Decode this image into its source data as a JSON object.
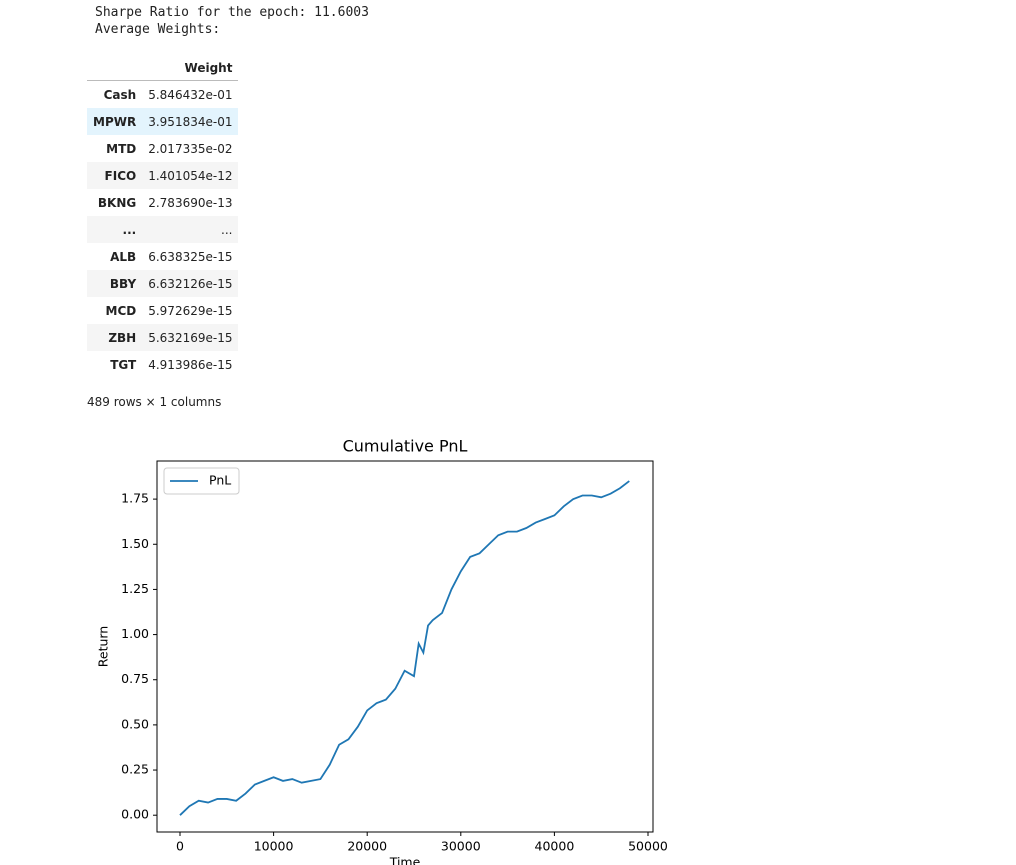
{
  "output_lines": [
    "Sharpe Ratio for the epoch: 11.6003",
    "Average Weights:"
  ],
  "table": {
    "columns": [
      "Weight"
    ],
    "rows": [
      [
        "Cash",
        "5.846432e-01"
      ],
      [
        "MPWR",
        "3.951834e-01"
      ],
      [
        "MTD",
        "2.017335e-02"
      ],
      [
        "FICO",
        "1.401054e-12"
      ],
      [
        "BKNG",
        "2.783690e-13"
      ],
      [
        "...",
        "..."
      ],
      [
        "ALB",
        "6.638325e-15"
      ],
      [
        "BBY",
        "6.632126e-15"
      ],
      [
        "MCD",
        "5.972629e-15"
      ],
      [
        "ZBH",
        "5.632169e-15"
      ],
      [
        "TGT",
        "4.913986e-15"
      ]
    ],
    "footer": "489 rows × 1 columns"
  },
  "chart_data": {
    "type": "line",
    "title": "Cumulative PnL",
    "x_label": "Time",
    "y_label": "Return",
    "legend": "upper left",
    "xlim": [
      -2457,
      50534
    ],
    "ylim": [
      -0.093,
      1.961
    ],
    "xticks": [
      0,
      10000,
      20000,
      30000,
      40000,
      50000
    ],
    "yticks": [
      {
        "value": 0,
        "label": "0.00"
      },
      {
        "value": 0.25,
        "label": "0.25"
      },
      {
        "value": 0.5,
        "label": "0.50"
      },
      {
        "value": 0.75,
        "label": "0.75"
      },
      {
        "value": 1,
        "label": "1.00"
      },
      {
        "value": 1.25,
        "label": "1.25"
      },
      {
        "value": 1.5,
        "label": "1.50"
      },
      {
        "value": 1.75,
        "label": "1.75"
      }
    ],
    "series": [
      {
        "name": "PnL",
        "color": "#1f77b4",
        "x": [
          0,
          1000,
          2000,
          3000,
          4000,
          5000,
          6000,
          7000,
          8000,
          9000,
          10000,
          11000,
          12000,
          13000,
          14000,
          15000,
          16000,
          17000,
          18000,
          19000,
          20000,
          21000,
          22000,
          23000,
          24000,
          25000,
          25500,
          26000,
          26500,
          27000,
          28000,
          29000,
          30000,
          31000,
          32000,
          33000,
          34000,
          35000,
          36000,
          37000,
          38000,
          39000,
          40000,
          41000,
          42000,
          43000,
          44000,
          45000,
          46000,
          47000,
          48000
        ],
        "values": [
          0,
          0.05,
          0.08,
          0.07,
          0.09,
          0.09,
          0.08,
          0.12,
          0.17,
          0.19,
          0.21,
          0.19,
          0.2,
          0.18,
          0.19,
          0.2,
          0.28,
          0.39,
          0.42,
          0.49,
          0.58,
          0.62,
          0.64,
          0.7,
          0.8,
          0.77,
          0.95,
          0.9,
          1.05,
          1.08,
          1.12,
          1.25,
          1.35,
          1.43,
          1.45,
          1.5,
          1.55,
          1.57,
          1.57,
          1.59,
          1.62,
          1.64,
          1.66,
          1.71,
          1.75,
          1.77,
          1.77,
          1.76,
          1.78,
          1.81,
          1.85
        ]
      }
    ]
  }
}
